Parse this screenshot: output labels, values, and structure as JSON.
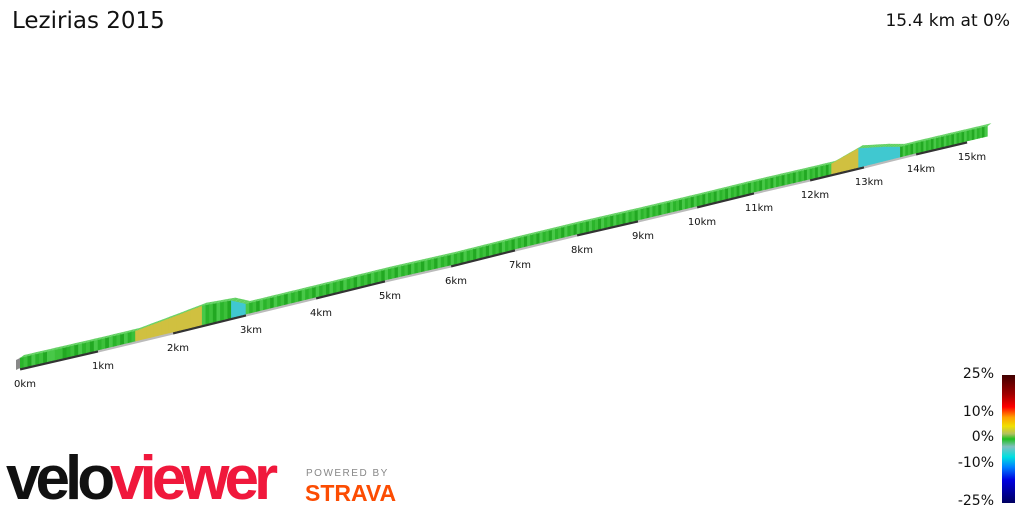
{
  "title": "Lezirias 2015",
  "summary": "15.4 km at 0%",
  "km_labels": [
    "0km",
    "1km",
    "2km",
    "3km",
    "4km",
    "5km",
    "6km",
    "7km",
    "8km",
    "9km",
    "10km",
    "11km",
    "12km",
    "13km",
    "14km",
    "15km"
  ],
  "legend": {
    "labels": [
      "25%",
      "10%",
      "0%",
      "-10%",
      "-25%"
    ]
  },
  "logo": {
    "velo": "velo",
    "viewer": "viewer",
    "powered": "POWERED BY",
    "strava": "STRAVA"
  },
  "colors": {
    "flat": "#2bb42b",
    "climb": "#d0c040",
    "descent": "#40c8d0",
    "brand": "#f0183c",
    "strava": "#fc4c02"
  }
}
